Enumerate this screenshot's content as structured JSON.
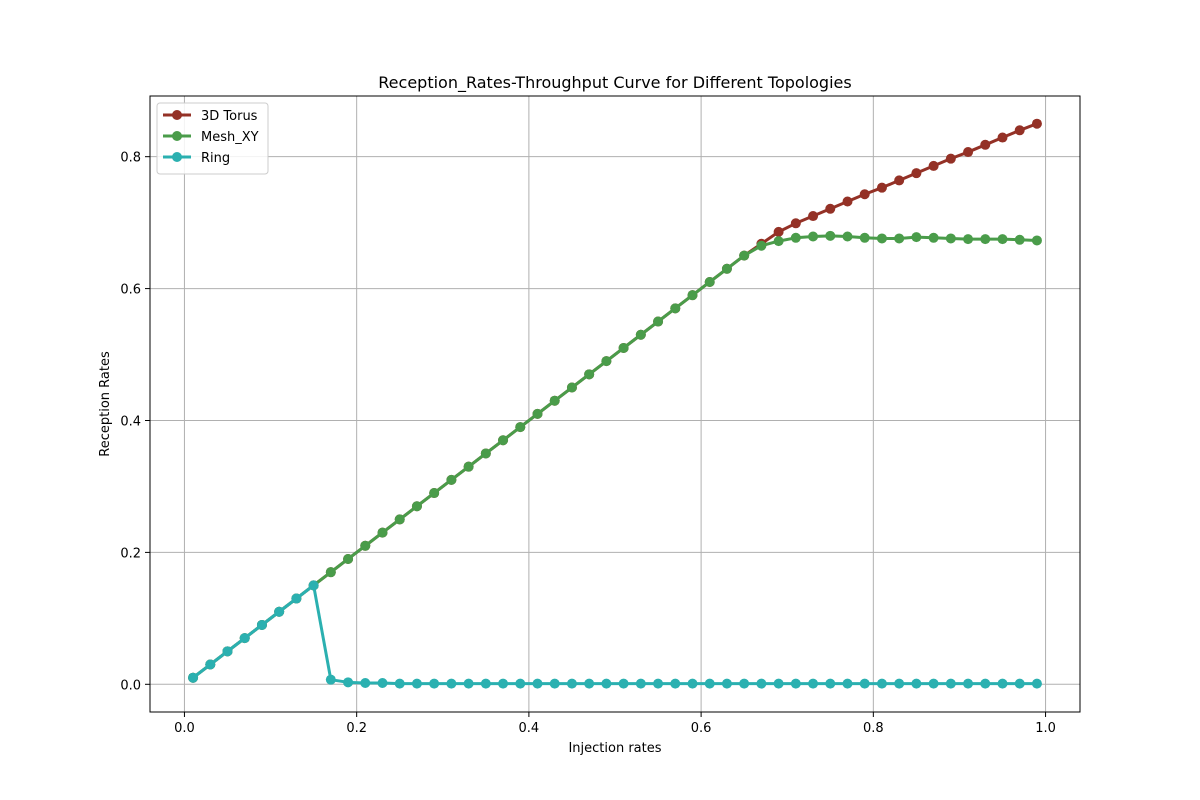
{
  "chart_data": {
    "type": "line",
    "title": "Reception_Rates-Throughput Curve for Different Topologies",
    "xlabel": "Injection rates",
    "ylabel": "Reception Rates",
    "xlim": [
      -0.04,
      1.04
    ],
    "ylim": [
      -0.042,
      0.892
    ],
    "xticks": [
      0.0,
      0.2,
      0.4,
      0.6,
      0.8,
      1.0
    ],
    "xtick_labels": [
      "0.0",
      "0.2",
      "0.4",
      "0.6",
      "0.8",
      "1.0"
    ],
    "yticks": [
      0.0,
      0.2,
      0.4,
      0.6,
      0.8
    ],
    "ytick_labels": [
      "0.0",
      "0.2",
      "0.4",
      "0.6",
      "0.8"
    ],
    "grid": true,
    "legend_position": "top-left",
    "x": [
      0.01,
      0.03,
      0.05,
      0.07,
      0.09,
      0.11,
      0.13,
      0.15,
      0.17,
      0.19,
      0.21,
      0.23,
      0.25,
      0.27,
      0.29,
      0.31,
      0.33,
      0.35,
      0.37,
      0.39,
      0.41,
      0.43,
      0.45,
      0.47,
      0.49,
      0.51,
      0.53,
      0.55,
      0.57,
      0.59,
      0.61,
      0.63,
      0.65,
      0.67,
      0.69,
      0.71,
      0.73,
      0.75,
      0.77,
      0.79,
      0.81,
      0.83,
      0.85,
      0.87,
      0.89,
      0.91,
      0.93,
      0.95,
      0.97,
      0.99
    ],
    "series": [
      {
        "name": "3D Torus",
        "color": "#943126",
        "values": [
          0.01,
          0.03,
          0.05,
          0.07,
          0.09,
          0.11,
          0.13,
          0.15,
          0.17,
          0.19,
          0.21,
          0.23,
          0.25,
          0.27,
          0.29,
          0.31,
          0.33,
          0.35,
          0.37,
          0.39,
          0.41,
          0.43,
          0.45,
          0.47,
          0.49,
          0.51,
          0.53,
          0.55,
          0.57,
          0.59,
          0.61,
          0.63,
          0.65,
          0.668,
          0.686,
          0.699,
          0.71,
          0.721,
          0.732,
          0.743,
          0.753,
          0.764,
          0.775,
          0.786,
          0.797,
          0.807,
          0.818,
          0.829,
          0.84,
          0.85
        ]
      },
      {
        "name": "Mesh_XY",
        "color": "#4a9c4a",
        "values": [
          0.01,
          0.03,
          0.05,
          0.07,
          0.09,
          0.11,
          0.13,
          0.15,
          0.17,
          0.19,
          0.21,
          0.23,
          0.25,
          0.27,
          0.29,
          0.31,
          0.33,
          0.35,
          0.37,
          0.39,
          0.41,
          0.43,
          0.45,
          0.47,
          0.49,
          0.51,
          0.53,
          0.55,
          0.57,
          0.59,
          0.61,
          0.63,
          0.65,
          0.665,
          0.672,
          0.677,
          0.679,
          0.68,
          0.679,
          0.677,
          0.676,
          0.676,
          0.678,
          0.677,
          0.676,
          0.675,
          0.675,
          0.675,
          0.674,
          0.673
        ]
      },
      {
        "name": "Ring",
        "color": "#2bb0b0",
        "values": [
          0.01,
          0.03,
          0.05,
          0.07,
          0.09,
          0.11,
          0.13,
          0.15,
          0.007,
          0.003,
          0.002,
          0.002,
          0.001,
          0.001,
          0.001,
          0.001,
          0.001,
          0.001,
          0.001,
          0.001,
          0.001,
          0.001,
          0.001,
          0.001,
          0.001,
          0.001,
          0.001,
          0.001,
          0.001,
          0.001,
          0.001,
          0.001,
          0.001,
          0.001,
          0.001,
          0.001,
          0.001,
          0.001,
          0.001,
          0.001,
          0.001,
          0.001,
          0.001,
          0.001,
          0.001,
          0.001,
          0.001,
          0.001,
          0.001,
          0.001
        ]
      }
    ]
  }
}
